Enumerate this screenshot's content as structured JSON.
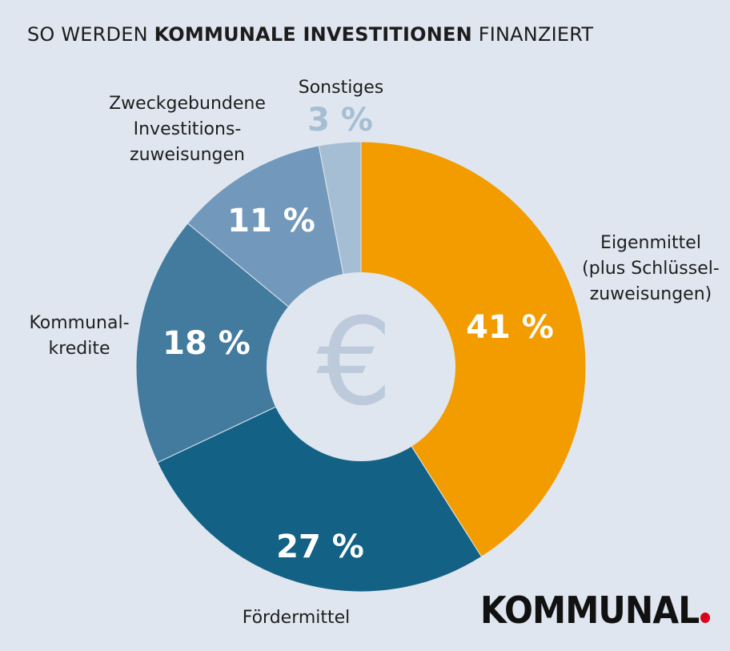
{
  "title": {
    "prefix": "SO WERDEN",
    "bold": "KOMMUNALE INVESTITIONEN",
    "suffix": "FINANZIERT"
  },
  "center_symbol": "€",
  "logo": "KOMMUNAL",
  "chart_data": {
    "type": "pie",
    "donut": true,
    "unit": "%",
    "slices": [
      {
        "label_lines": [
          "Eigenmittel",
          "(plus Schlüssel-",
          "zuweisungen)"
        ],
        "value": 41,
        "display": "41 %",
        "color": "#f39c00"
      },
      {
        "label_lines": [
          "Fördermittel"
        ],
        "value": 27,
        "display": "27 %",
        "color": "#136185"
      },
      {
        "label_lines": [
          "Kommunal-",
          "kredite"
        ],
        "value": 18,
        "display": "18 %",
        "color": "#437b9f"
      },
      {
        "label_lines": [
          "Zweckgebundene",
          "Investitions-",
          "zuweisungen"
        ],
        "value": 11,
        "display": "11 %",
        "color": "#7299bb"
      },
      {
        "label_lines": [
          "Sonstiges"
        ],
        "value": 3,
        "display": "3 %",
        "color": "#a6bed3"
      }
    ],
    "colors": {
      "background": "#dfe6ef",
      "center": "#dfe6ef",
      "center_symbol": "#bccadb",
      "small_value_text": "#a6bed3"
    }
  }
}
